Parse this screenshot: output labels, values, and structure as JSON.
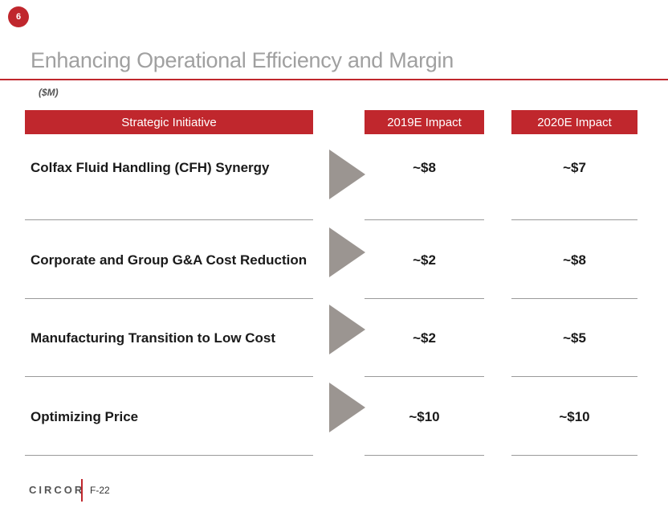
{
  "page": {
    "badge_number": "6",
    "title": "Enhancing Operational Efficiency and Margin",
    "units": "($M)"
  },
  "table": {
    "headers": {
      "initiative": "Strategic Initiative",
      "impact_2019": "2019E Impact",
      "impact_2020": "2020E Impact"
    },
    "rows": [
      {
        "initiative": "Colfax Fluid Handling (CFH) Synergy",
        "impact_2019": "~$8",
        "impact_2020": "~$7"
      },
      {
        "initiative": "Corporate and Group G&A Cost Reduction",
        "impact_2019": "~$2",
        "impact_2020": "~$8"
      },
      {
        "initiative": "Manufacturing Transition to Low Cost",
        "impact_2019": "~$2",
        "impact_2020": "~$5"
      },
      {
        "initiative": "Optimizing Price",
        "impact_2019": "~$10",
        "impact_2020": "~$10"
      }
    ]
  },
  "footer": {
    "logo_text": "CIRCOR",
    "page_label": "F-22"
  },
  "colors": {
    "accent": "#c0272d",
    "title": "#a0a0a0",
    "arrow": "#9b9591",
    "rule": "#9a9a9a"
  },
  "icons": {
    "row_arrow": "arrow-right-icon"
  }
}
